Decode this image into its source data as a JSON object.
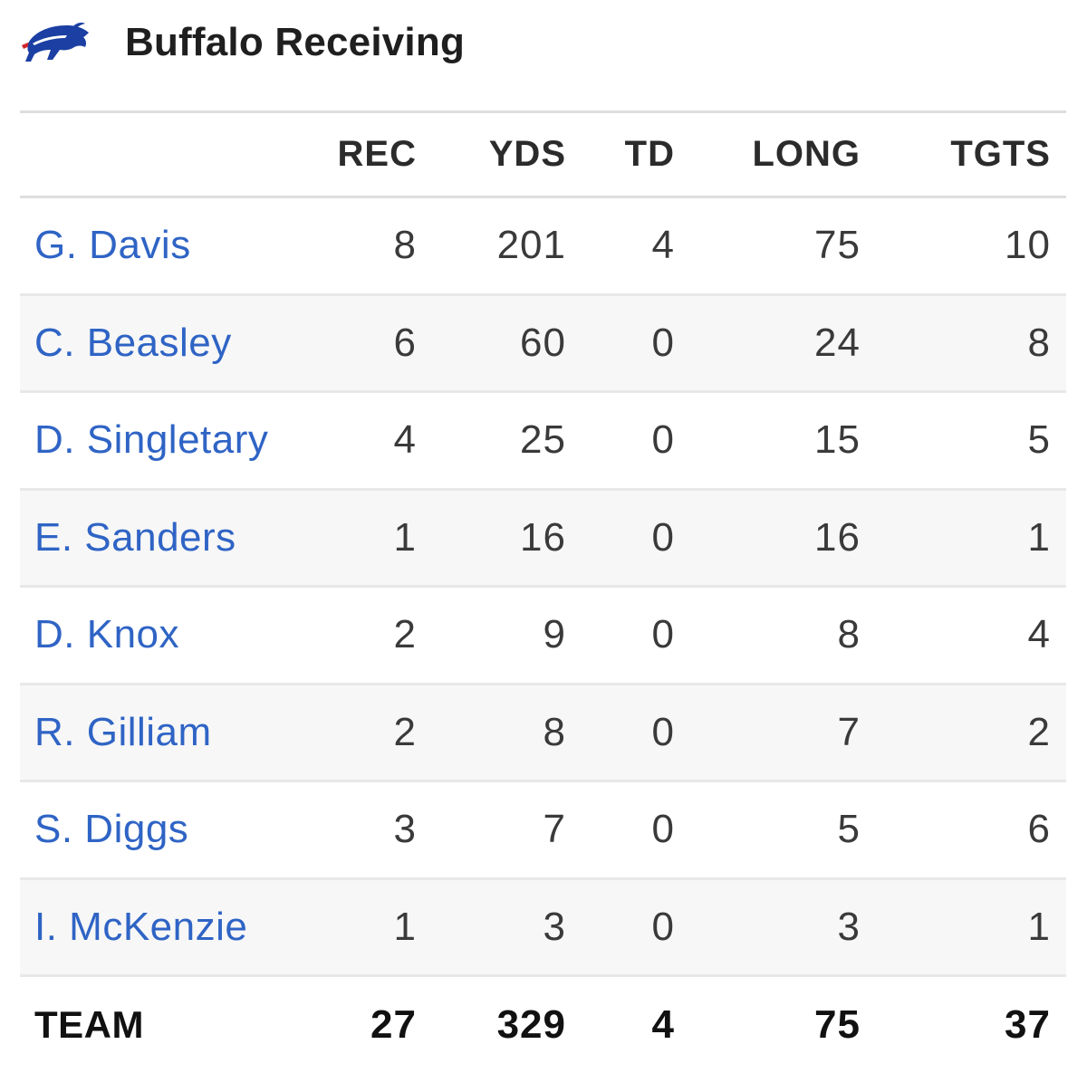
{
  "header": {
    "title": "Buffalo Receiving",
    "logo_icon": "buffalo-bills-logo",
    "logo_colors": {
      "primary": "#1b3fa3",
      "accent": "#d3262d"
    }
  },
  "table": {
    "columns": [
      "REC",
      "YDS",
      "TD",
      "LONG",
      "TGTS"
    ],
    "rows": [
      {
        "name": "G. Davis",
        "rec": "8",
        "yds": "201",
        "td": "4",
        "long": "75",
        "tgts": "10"
      },
      {
        "name": "C. Beasley",
        "rec": "6",
        "yds": "60",
        "td": "0",
        "long": "24",
        "tgts": "8"
      },
      {
        "name": "D. Singletary",
        "rec": "4",
        "yds": "25",
        "td": "0",
        "long": "15",
        "tgts": "5"
      },
      {
        "name": "E. Sanders",
        "rec": "1",
        "yds": "16",
        "td": "0",
        "long": "16",
        "tgts": "1"
      },
      {
        "name": "D. Knox",
        "rec": "2",
        "yds": "9",
        "td": "0",
        "long": "8",
        "tgts": "4"
      },
      {
        "name": "R. Gilliam",
        "rec": "2",
        "yds": "8",
        "td": "0",
        "long": "7",
        "tgts": "2"
      },
      {
        "name": "S. Diggs",
        "rec": "3",
        "yds": "7",
        "td": "0",
        "long": "5",
        "tgts": "6"
      },
      {
        "name": "I. McKenzie",
        "rec": "1",
        "yds": "3",
        "td": "0",
        "long": "3",
        "tgts": "1"
      }
    ],
    "team": {
      "name": "TEAM",
      "rec": "27",
      "yds": "329",
      "td": "4",
      "long": "75",
      "tgts": "37"
    }
  },
  "colors": {
    "link": "#2f64c5",
    "text": "#3a3a3a",
    "header_text": "#2b2b2b",
    "row_alt": "#f7f7f7",
    "divider": "#e8e8e8"
  }
}
